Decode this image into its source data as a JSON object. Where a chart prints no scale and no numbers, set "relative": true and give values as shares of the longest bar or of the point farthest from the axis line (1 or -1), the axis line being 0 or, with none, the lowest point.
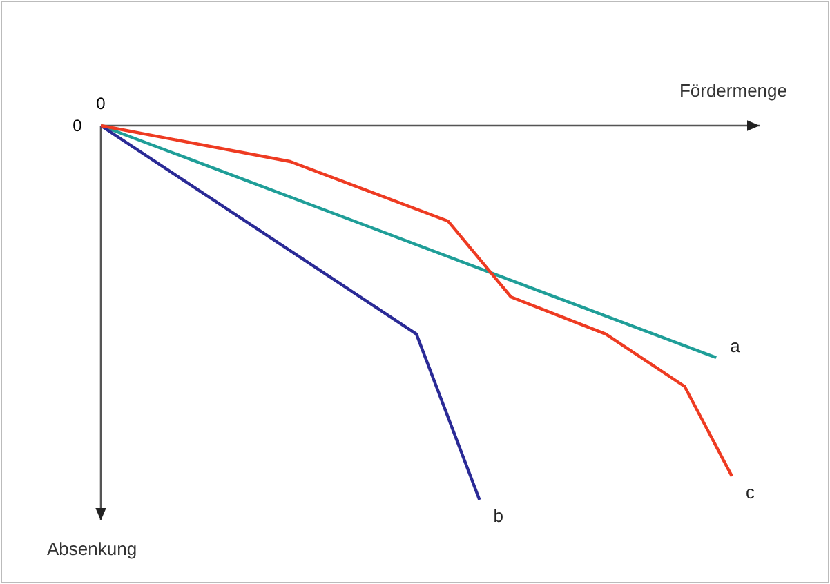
{
  "chart_data": {
    "type": "line",
    "relative": true,
    "xlabel": "Fördermenge",
    "ylabel": "Absenkung",
    "annotations": [
      "0",
      "0"
    ],
    "marker": "none",
    "line_style": "solid",
    "categories": [
      null,
      null,
      null,
      null,
      null,
      null,
      null,
      null,
      null,
      null,
      null,
      null,
      null,
      null,
      null,
      null,
      null,
      null,
      null,
      null,
      null,
      null,
      null,
      null,
      null,
      null,
      null,
      null,
      null,
      null,
      null,
      null,
      null,
      null,
      null,
      null,
      null,
      null,
      null,
      null,
      null
    ],
    "series": [
      {
        "name": "a",
        "color": "#1f9e98",
        "values": [
          0,
          null,
          null,
          null,
          null,
          null,
          null,
          null,
          null,
          null,
          null,
          null,
          null,
          null,
          null,
          null,
          null,
          null,
          null,
          null,
          null,
          null,
          null,
          null,
          null,
          null,
          null,
          null,
          null,
          null,
          null,
          null,
          null,
          null,
          null,
          null,
          null,
          null,
          null,
          -0.62,
          null
        ]
      },
      {
        "name": "b",
        "color": "#2a2a96",
        "values": [
          0,
          null,
          null,
          null,
          null,
          null,
          null,
          null,
          null,
          null,
          null,
          null,
          null,
          null,
          null,
          null,
          null,
          null,
          null,
          null,
          -0.557,
          null,
          null,
          null,
          -1,
          null,
          null,
          null,
          null,
          null,
          null,
          null,
          null,
          null,
          null,
          null,
          null,
          null,
          null,
          null,
          null
        ]
      },
      {
        "name": "c",
        "color": "#ee3b22",
        "values": [
          0,
          null,
          null,
          null,
          null,
          null,
          null,
          null,
          null,
          null,
          null,
          null,
          -0.096,
          null,
          null,
          null,
          null,
          null,
          null,
          null,
          null,
          null,
          -0.255,
          null,
          null,
          null,
          -0.458,
          null,
          null,
          null,
          null,
          null,
          -0.557,
          null,
          null,
          null,
          null,
          -0.697,
          null,
          null,
          -0.937
        ]
      }
    ]
  }
}
